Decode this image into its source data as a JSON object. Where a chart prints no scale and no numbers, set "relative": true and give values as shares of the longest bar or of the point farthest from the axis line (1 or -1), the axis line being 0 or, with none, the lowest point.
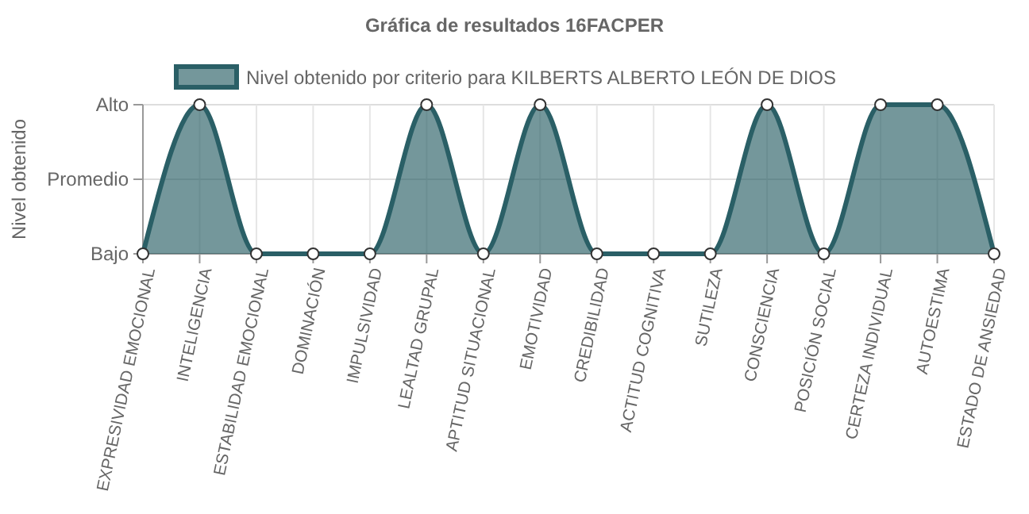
{
  "chart_data": {
    "type": "area",
    "title": "Gráfica de resultados 16FACPER",
    "ylabel": "Nivel obtenido",
    "categories": [
      "EXPRESIVIDAD EMOCIONAL",
      "INTELIGENCIA",
      "ESTABILIDAD EMOCIONAL",
      "DOMINACIÓN",
      "IMPULSIVIDAD",
      "LEALTAD GRUPAL",
      "APTITUD SITUACIONAL",
      "EMOTIVIDAD",
      "CREDIBILIDAD",
      "ACTITUD COGNITIVA",
      "SUTILEZA",
      "CONSCIENCIA",
      "POSICIÓN SOCIAL",
      "CERTEZA INDIVIDUAL",
      "AUTOESTIMA",
      "ESTADO DE ANSIEDAD"
    ],
    "series": [
      {
        "name": "Nivel obtenido por criterio para KILBERTS ALBERTO LEÓN DE DIOS",
        "color": "#2a5f66",
        "values": [
          0,
          1,
          0,
          0,
          0,
          1,
          0,
          1,
          0,
          0,
          0,
          1,
          0,
          1,
          1,
          0
        ]
      }
    ],
    "relative": true,
    "annotations": [
      "Bajo",
      "Alto"
    ],
    "ref_lines": [
      {
        "axis": "y",
        "value": 0.5,
        "label": "Promedio",
        "color": "#dddddd"
      }
    ],
    "grid": true,
    "legend": "top",
    "marker": "circle"
  }
}
